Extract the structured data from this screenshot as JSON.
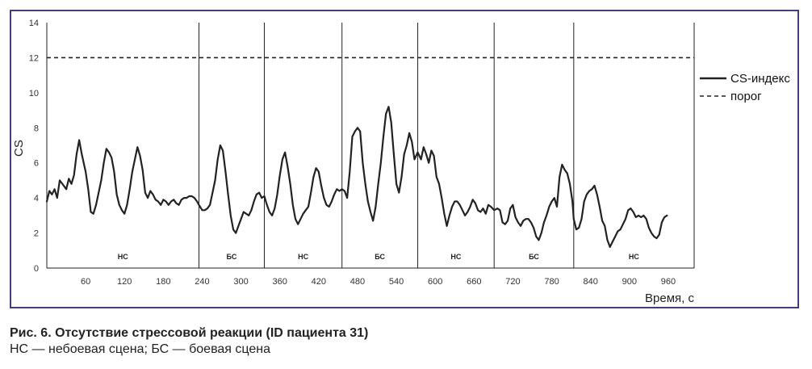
{
  "chart_data": {
    "type": "line",
    "ylabel": "CS",
    "xlabel": "Время, с",
    "xlim": [
      0,
      1000
    ],
    "ylim": [
      0,
      14
    ],
    "y_ticks": [
      "0",
      "2",
      "4",
      "6",
      "8",
      "10",
      "12",
      "14"
    ],
    "x_ticks": [
      "60",
      "120",
      "180",
      "240",
      "300",
      "360",
      "420",
      "480",
      "540",
      "600",
      "660",
      "720",
      "780",
      "840",
      "900",
      "960"
    ],
    "grid": false,
    "legend_position": "right",
    "threshold": 12,
    "segment_boundaries": [
      235,
      336,
      456,
      573,
      691,
      814
    ],
    "segments": [
      {
        "label": "НС",
        "start": 0,
        "end": 235
      },
      {
        "label": "БС",
        "start": 235,
        "end": 336
      },
      {
        "label": "НС",
        "start": 336,
        "end": 456
      },
      {
        "label": "БС",
        "start": 456,
        "end": 573
      },
      {
        "label": "НС",
        "start": 573,
        "end": 691
      },
      {
        "label": "БС",
        "start": 691,
        "end": 814
      },
      {
        "label": "НС",
        "start": 814,
        "end": 1000
      }
    ],
    "series": [
      {
        "name": "CS-индекс",
        "style": "solid",
        "color": "#222222",
        "points": [
          [
            0,
            3.8
          ],
          [
            4,
            4.4
          ],
          [
            8,
            4.2
          ],
          [
            12,
            4.5
          ],
          [
            16,
            4.0
          ],
          [
            20,
            5.0
          ],
          [
            26,
            4.7
          ],
          [
            30,
            4.5
          ],
          [
            34,
            5.1
          ],
          [
            38,
            4.8
          ],
          [
            42,
            5.3
          ],
          [
            46,
            6.5
          ],
          [
            50,
            7.3
          ],
          [
            54,
            6.5
          ],
          [
            60,
            5.5
          ],
          [
            64,
            4.5
          ],
          [
            68,
            3.2
          ],
          [
            72,
            3.1
          ],
          [
            76,
            3.6
          ],
          [
            80,
            4.3
          ],
          [
            84,
            5.0
          ],
          [
            88,
            6.0
          ],
          [
            92,
            6.8
          ],
          [
            96,
            6.6
          ],
          [
            100,
            6.3
          ],
          [
            104,
            5.5
          ],
          [
            108,
            4.2
          ],
          [
            112,
            3.6
          ],
          [
            116,
            3.3
          ],
          [
            120,
            3.1
          ],
          [
            124,
            3.6
          ],
          [
            128,
            4.5
          ],
          [
            132,
            5.5
          ],
          [
            136,
            6.2
          ],
          [
            140,
            6.9
          ],
          [
            144,
            6.4
          ],
          [
            148,
            5.6
          ],
          [
            152,
            4.3
          ],
          [
            156,
            4.0
          ],
          [
            160,
            4.4
          ],
          [
            164,
            4.2
          ],
          [
            168,
            3.9
          ],
          [
            172,
            3.8
          ],
          [
            176,
            3.6
          ],
          [
            180,
            3.9
          ],
          [
            184,
            3.8
          ],
          [
            188,
            3.6
          ],
          [
            192,
            3.8
          ],
          [
            196,
            3.9
          ],
          [
            200,
            3.7
          ],
          [
            204,
            3.6
          ],
          [
            208,
            3.9
          ],
          [
            212,
            4.0
          ],
          [
            216,
            4.0
          ],
          [
            220,
            4.1
          ],
          [
            224,
            4.1
          ],
          [
            228,
            4.0
          ],
          [
            232,
            3.8
          ],
          [
            235,
            3.6
          ],
          [
            240,
            3.3
          ],
          [
            244,
            3.3
          ],
          [
            248,
            3.4
          ],
          [
            252,
            3.6
          ],
          [
            256,
            4.3
          ],
          [
            260,
            5.0
          ],
          [
            264,
            6.2
          ],
          [
            268,
            7.0
          ],
          [
            272,
            6.7
          ],
          [
            276,
            5.5
          ],
          [
            280,
            4.2
          ],
          [
            284,
            3.0
          ],
          [
            288,
            2.2
          ],
          [
            292,
            2.0
          ],
          [
            296,
            2.4
          ],
          [
            300,
            2.8
          ],
          [
            304,
            3.2
          ],
          [
            308,
            3.1
          ],
          [
            312,
            3.0
          ],
          [
            316,
            3.3
          ],
          [
            320,
            3.8
          ],
          [
            324,
            4.2
          ],
          [
            328,
            4.3
          ],
          [
            332,
            4.0
          ],
          [
            336,
            4.1
          ],
          [
            340,
            3.6
          ],
          [
            344,
            3.2
          ],
          [
            348,
            3.0
          ],
          [
            352,
            3.4
          ],
          [
            356,
            4.2
          ],
          [
            360,
            5.3
          ],
          [
            364,
            6.2
          ],
          [
            368,
            6.6
          ],
          [
            372,
            5.8
          ],
          [
            376,
            4.8
          ],
          [
            380,
            3.6
          ],
          [
            384,
            2.8
          ],
          [
            388,
            2.5
          ],
          [
            392,
            2.8
          ],
          [
            396,
            3.1
          ],
          [
            400,
            3.3
          ],
          [
            404,
            3.5
          ],
          [
            408,
            4.3
          ],
          [
            412,
            5.2
          ],
          [
            416,
            5.7
          ],
          [
            420,
            5.5
          ],
          [
            424,
            4.7
          ],
          [
            428,
            4.0
          ],
          [
            432,
            3.6
          ],
          [
            436,
            3.5
          ],
          [
            440,
            3.8
          ],
          [
            444,
            4.2
          ],
          [
            448,
            4.5
          ],
          [
            452,
            4.4
          ],
          [
            456,
            4.5
          ],
          [
            460,
            4.4
          ],
          [
            464,
            4.0
          ],
          [
            468,
            5.5
          ],
          [
            472,
            7.5
          ],
          [
            476,
            7.8
          ],
          [
            480,
            8.0
          ],
          [
            484,
            7.8
          ],
          [
            488,
            6.0
          ],
          [
            492,
            4.8
          ],
          [
            496,
            3.8
          ],
          [
            500,
            3.2
          ],
          [
            504,
            2.7
          ],
          [
            508,
            3.5
          ],
          [
            512,
            4.8
          ],
          [
            516,
            6.0
          ],
          [
            520,
            7.5
          ],
          [
            524,
            8.8
          ],
          [
            528,
            9.2
          ],
          [
            532,
            8.3
          ],
          [
            536,
            6.5
          ],
          [
            540,
            4.8
          ],
          [
            544,
            4.3
          ],
          [
            548,
            5.2
          ],
          [
            552,
            6.5
          ],
          [
            556,
            7.0
          ],
          [
            560,
            7.7
          ],
          [
            564,
            7.2
          ],
          [
            568,
            6.2
          ],
          [
            573,
            6.6
          ],
          [
            578,
            6.2
          ],
          [
            582,
            6.9
          ],
          [
            586,
            6.5
          ],
          [
            590,
            6.0
          ],
          [
            594,
            6.7
          ],
          [
            598,
            6.4
          ],
          [
            602,
            5.2
          ],
          [
            606,
            4.8
          ],
          [
            610,
            4.0
          ],
          [
            614,
            3.1
          ],
          [
            618,
            2.4
          ],
          [
            622,
            3.0
          ],
          [
            626,
            3.5
          ],
          [
            630,
            3.8
          ],
          [
            634,
            3.8
          ],
          [
            638,
            3.6
          ],
          [
            642,
            3.3
          ],
          [
            646,
            3.0
          ],
          [
            650,
            3.2
          ],
          [
            654,
            3.5
          ],
          [
            658,
            3.9
          ],
          [
            662,
            3.7
          ],
          [
            666,
            3.3
          ],
          [
            670,
            3.2
          ],
          [
            674,
            3.4
          ],
          [
            678,
            3.1
          ],
          [
            682,
            3.6
          ],
          [
            686,
            3.5
          ],
          [
            691,
            3.3
          ],
          [
            696,
            3.4
          ],
          [
            700,
            3.3
          ],
          [
            704,
            2.6
          ],
          [
            708,
            2.5
          ],
          [
            712,
            2.7
          ],
          [
            716,
            3.4
          ],
          [
            720,
            3.6
          ],
          [
            724,
            2.9
          ],
          [
            728,
            2.6
          ],
          [
            732,
            2.4
          ],
          [
            736,
            2.7
          ],
          [
            740,
            2.8
          ],
          [
            744,
            2.8
          ],
          [
            748,
            2.6
          ],
          [
            752,
            2.3
          ],
          [
            756,
            1.8
          ],
          [
            760,
            1.6
          ],
          [
            764,
            2.0
          ],
          [
            768,
            2.6
          ],
          [
            772,
            3.0
          ],
          [
            776,
            3.5
          ],
          [
            780,
            3.8
          ],
          [
            784,
            4.0
          ],
          [
            788,
            3.5
          ],
          [
            792,
            5.2
          ],
          [
            796,
            5.9
          ],
          [
            800,
            5.6
          ],
          [
            804,
            5.4
          ],
          [
            808,
            4.8
          ],
          [
            812,
            3.8
          ],
          [
            814,
            2.8
          ],
          [
            818,
            2.2
          ],
          [
            822,
            2.3
          ],
          [
            826,
            2.8
          ],
          [
            830,
            3.8
          ],
          [
            834,
            4.2
          ],
          [
            838,
            4.4
          ],
          [
            842,
            4.5
          ],
          [
            846,
            4.7
          ],
          [
            850,
            4.2
          ],
          [
            854,
            3.5
          ],
          [
            858,
            2.7
          ],
          [
            862,
            2.4
          ],
          [
            866,
            1.6
          ],
          [
            870,
            1.2
          ],
          [
            874,
            1.5
          ],
          [
            878,
            1.8
          ],
          [
            882,
            2.1
          ],
          [
            886,
            2.2
          ],
          [
            890,
            2.5
          ],
          [
            894,
            2.8
          ],
          [
            898,
            3.3
          ],
          [
            902,
            3.4
          ],
          [
            906,
            3.2
          ],
          [
            910,
            2.9
          ],
          [
            914,
            3.0
          ],
          [
            918,
            2.9
          ],
          [
            922,
            3.0
          ],
          [
            926,
            2.8
          ],
          [
            930,
            2.3
          ],
          [
            934,
            2.0
          ],
          [
            938,
            1.8
          ],
          [
            942,
            1.7
          ],
          [
            946,
            1.9
          ],
          [
            950,
            2.6
          ],
          [
            954,
            2.9
          ],
          [
            958,
            3.0
          ]
        ]
      },
      {
        "name": "порог",
        "style": "dashed",
        "color": "#222222"
      }
    ]
  },
  "caption": {
    "title": "Рис. 6. Отсутствие стрессовой реакции (ID пациента 31)",
    "note": "НС — небоевая сцена; БС — боевая сцена"
  },
  "colors": {
    "frame": "#4b3a78",
    "line": "#222222"
  }
}
